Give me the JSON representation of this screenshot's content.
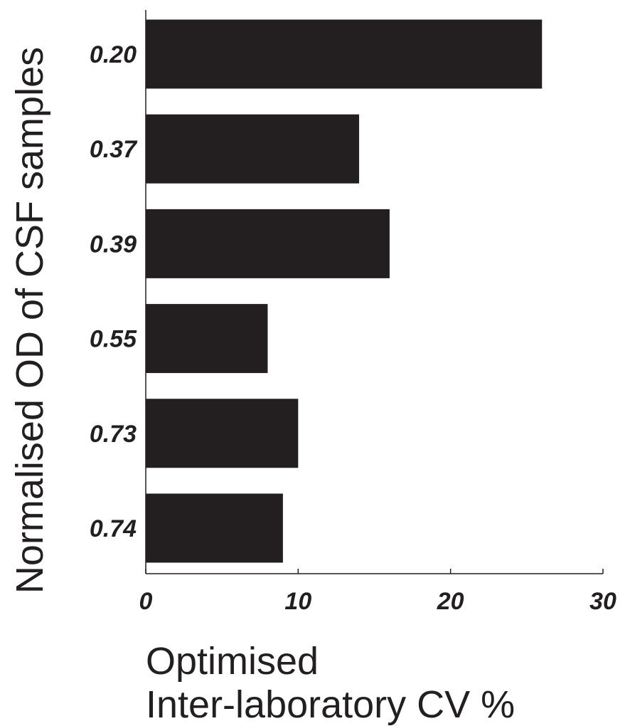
{
  "chart_data": {
    "type": "bar",
    "orientation": "horizontal",
    "categories": [
      "0.20",
      "0.37",
      "0.39",
      "0.55",
      "0.73",
      "0.74"
    ],
    "values": [
      26,
      14,
      16,
      8,
      10,
      9
    ],
    "ylabel": "Normalised OD of CSF samples",
    "xlabel_lines": [
      "Optimised",
      "Inter-laboratory CV %"
    ],
    "xlim": [
      0,
      30
    ],
    "xticks": [
      "0",
      "10",
      "20",
      "30"
    ],
    "grid": false,
    "legend": "none",
    "bar_color": "#231f20"
  }
}
